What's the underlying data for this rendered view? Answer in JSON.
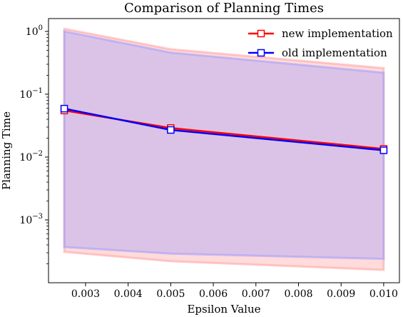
{
  "chart_data": {
    "type": "line",
    "title": "Comparison of Planning Times",
    "xlabel": "Epsilon Value",
    "ylabel": "Planning Time",
    "x": [
      0.0025,
      0.005,
      0.01
    ],
    "xlim": [
      0.00213,
      0.01037
    ],
    "ylim": [
      0.0001,
      1.6
    ],
    "yscale": "log",
    "xticks": [
      0.003,
      0.004,
      0.005,
      0.006,
      0.007,
      0.008,
      0.009,
      0.01
    ],
    "xtick_labels": [
      "0.003",
      "0.004",
      "0.005",
      "0.006",
      "0.007",
      "0.008",
      "0.009",
      "0.010"
    ],
    "yticks": [
      {
        "value": 1,
        "base": "10",
        "exp": "0"
      },
      {
        "value": 0.1,
        "base": "10",
        "exp": "−1"
      },
      {
        "value": 0.01,
        "base": "10",
        "exp": "−2"
      },
      {
        "value": 0.001,
        "base": "10",
        "exp": "−3"
      }
    ],
    "grid": false,
    "legend_position": "top-right",
    "series": [
      {
        "name": "new implementation",
        "color": "#ff0000",
        "band_color": "#ff9999",
        "values": [
          0.055,
          0.029,
          0.0135
        ],
        "band_upper": [
          1.1,
          0.52,
          0.26
        ],
        "band_lower": [
          0.00031,
          0.00022,
          0.00016
        ]
      },
      {
        "name": "old implementation",
        "color": "#0000ff",
        "band_color": "#9999ff",
        "values": [
          0.059,
          0.027,
          0.0128
        ],
        "band_upper": [
          1.0,
          0.46,
          0.22
        ],
        "band_lower": [
          0.00037,
          0.00029,
          0.00024
        ]
      }
    ]
  }
}
